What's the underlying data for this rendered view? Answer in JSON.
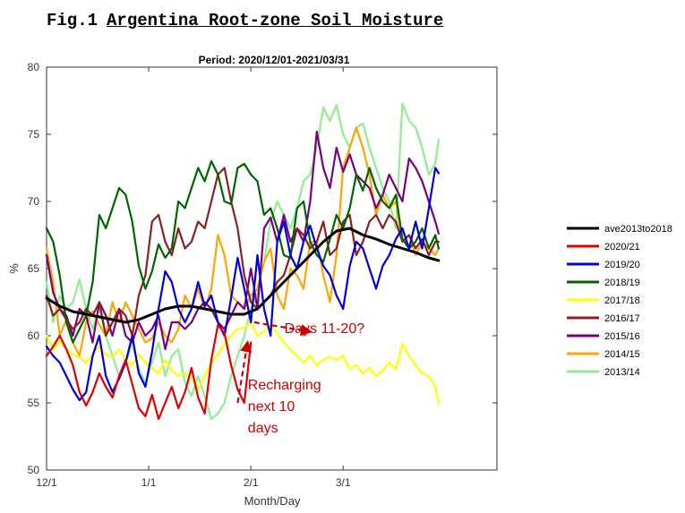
{
  "figure": {
    "number": "Fig.1",
    "title": "Argentina Root-zone Soil Moisture"
  },
  "chart_data": {
    "type": "line",
    "title": "Period: 2020/12/01-2021/03/31",
    "xlabel": "Month/Day",
    "ylabel": "%",
    "xlim": [
      0,
      132
    ],
    "ylim": [
      50,
      80
    ],
    "x_ticks": [
      {
        "day": 0,
        "label": "12/1"
      },
      {
        "day": 31,
        "label": "1/1"
      },
      {
        "day": 62,
        "label": "2/1"
      },
      {
        "day": 90,
        "label": "3/1"
      }
    ],
    "y_ticks": [
      50,
      55,
      60,
      65,
      70,
      75,
      80
    ],
    "grid": false,
    "legend_position": "right, outside plot",
    "series": [
      {
        "name": "ave2013to2018",
        "color": "#000000",
        "width": 3,
        "x": [
          0,
          4,
          8,
          12,
          16,
          20,
          24,
          28,
          32,
          36,
          40,
          44,
          48,
          52,
          56,
          60,
          64,
          68,
          72,
          76,
          80,
          84,
          88,
          92,
          96,
          100,
          104,
          108,
          112,
          116,
          119
        ],
        "y": [
          62.8,
          62.2,
          61.8,
          61.6,
          61.4,
          61.2,
          61.0,
          61.2,
          61.6,
          62.0,
          62.2,
          62.2,
          62.0,
          61.8,
          61.6,
          61.6,
          62.0,
          63.0,
          64.0,
          65.0,
          66.0,
          67.0,
          67.8,
          68.0,
          67.5,
          67.2,
          66.8,
          66.5,
          66.2,
          65.8,
          65.6
        ]
      },
      {
        "name": "2020/21",
        "color": "#e00000",
        "width": 2.2,
        "x": [
          0,
          2,
          4,
          6,
          8,
          10,
          12,
          14,
          16,
          18,
          20,
          22,
          24,
          26,
          28,
          30,
          32,
          34,
          36,
          38,
          40,
          42,
          44,
          46,
          48,
          50,
          52,
          54,
          56,
          58,
          60,
          62
        ],
        "y": [
          58.5,
          59.2,
          60.0,
          59.0,
          57.8,
          55.8,
          54.8,
          55.8,
          57.2,
          56.2,
          55.4,
          57.0,
          58.2,
          56.4,
          54.6,
          54.0,
          55.6,
          53.8,
          55.0,
          56.2,
          54.6,
          55.8,
          57.6,
          55.4,
          54.2,
          58.2,
          60.8,
          60.2,
          57.8,
          56.0,
          55.0,
          59.5
        ]
      },
      {
        "name": "2019/20",
        "color": "#0000dd",
        "width": 2.2,
        "x": [
          0,
          2,
          4,
          6,
          8,
          10,
          12,
          14,
          16,
          18,
          20,
          22,
          24,
          26,
          28,
          30,
          32,
          34,
          36,
          38,
          40,
          42,
          44,
          46,
          48,
          50,
          52,
          54,
          56,
          58,
          60,
          62,
          64,
          66,
          68,
          70,
          72,
          74,
          76,
          78,
          80,
          82,
          84,
          86,
          88,
          90,
          92,
          94,
          96,
          98,
          100,
          102,
          104,
          106,
          108,
          110,
          112,
          114,
          116,
          118,
          119
        ],
        "y": [
          59.2,
          58.5,
          58.0,
          57.0,
          56.0,
          55.2,
          55.8,
          58.5,
          60.0,
          57.0,
          55.8,
          56.8,
          58.0,
          60.0,
          57.2,
          56.2,
          58.8,
          62.0,
          64.8,
          64.0,
          62.0,
          61.0,
          62.0,
          64.0,
          62.2,
          63.0,
          61.0,
          60.0,
          62.8,
          65.8,
          63.5,
          61.0,
          66.0,
          62.0,
          60.0,
          67.0,
          68.5,
          66.0,
          65.0,
          67.0,
          68.2,
          66.5,
          65.2,
          64.5,
          63.0,
          62.0,
          65.2,
          67.0,
          66.5,
          65.0,
          63.5,
          65.2,
          66.0,
          67.2,
          68.0,
          66.5,
          68.5,
          66.5,
          69.5,
          72.5,
          72.1
        ]
      },
      {
        "name": "2018/19",
        "color": "#006400",
        "width": 2.2,
        "x": [
          0,
          2,
          4,
          6,
          8,
          10,
          12,
          14,
          16,
          18,
          20,
          22,
          24,
          26,
          28,
          30,
          32,
          34,
          36,
          38,
          40,
          42,
          44,
          46,
          48,
          50,
          52,
          54,
          56,
          58,
          60,
          62,
          64,
          66,
          68,
          70,
          72,
          74,
          76,
          78,
          80,
          82,
          84,
          86,
          88,
          90,
          92,
          94,
          96,
          98,
          100,
          102,
          104,
          106,
          108,
          110,
          112,
          114,
          116,
          118,
          119
        ],
        "y": [
          68.0,
          67.0,
          64.5,
          61.0,
          59.5,
          60.5,
          61.5,
          64.0,
          69.0,
          68.0,
          69.5,
          71.0,
          70.5,
          68.5,
          65.2,
          63.5,
          64.8,
          66.8,
          65.8,
          66.5,
          70.0,
          69.5,
          71.0,
          72.5,
          71.5,
          73.0,
          72.0,
          70.0,
          69.8,
          72.5,
          72.8,
          72.0,
          71.5,
          69.0,
          69.5,
          68.0,
          66.0,
          65.8,
          69.5,
          70.0,
          67.0,
          66.0,
          65.5,
          67.2,
          69.0,
          68.0,
          69.5,
          72.0,
          70.8,
          72.5,
          71.0,
          70.0,
          69.5,
          70.5,
          67.2,
          66.5,
          67.0,
          68.0,
          66.5,
          67.5,
          66.5
        ]
      },
      {
        "name": "2017/18",
        "color": "#ffff00",
        "width": 2.2,
        "x": [
          0,
          2,
          4,
          6,
          8,
          10,
          12,
          14,
          16,
          18,
          20,
          22,
          24,
          26,
          28,
          30,
          32,
          34,
          36,
          38,
          40,
          42,
          44,
          46,
          48,
          50,
          52,
          54,
          56,
          58,
          60,
          62,
          64,
          66,
          68,
          70,
          72,
          74,
          76,
          78,
          80,
          82,
          84,
          86,
          88,
          90,
          92,
          94,
          96,
          98,
          100,
          102,
          104,
          106,
          108,
          110,
          112,
          114,
          116,
          118,
          119
        ],
        "y": [
          60.0,
          59.0,
          59.6,
          59.0,
          58.6,
          58.4,
          58.0,
          58.6,
          59.2,
          58.6,
          58.4,
          59.0,
          58.2,
          57.8,
          58.6,
          58.0,
          57.6,
          57.2,
          58.2,
          57.4,
          57.0,
          57.2,
          56.8,
          56.0,
          57.0,
          58.0,
          58.6,
          59.4,
          60.0,
          60.5,
          60.6,
          61.0,
          60.0,
          60.3,
          60.8,
          60.2,
          59.5,
          59.0,
          58.5,
          58.0,
          58.5,
          57.8,
          58.2,
          58.4,
          58.2,
          58.5,
          57.5,
          57.8,
          57.2,
          57.6,
          57.0,
          57.4,
          58.0,
          57.5,
          59.4,
          58.5,
          57.8,
          57.2,
          57.0,
          56.2,
          55.0
        ]
      },
      {
        "name": "2016/17",
        "color": "#8b2020",
        "width": 2.2,
        "x": [
          0,
          2,
          4,
          6,
          8,
          10,
          12,
          14,
          16,
          18,
          20,
          22,
          24,
          26,
          28,
          30,
          32,
          34,
          36,
          38,
          40,
          42,
          44,
          46,
          48,
          50,
          52,
          54,
          56,
          58,
          60,
          62,
          64,
          66,
          68,
          70,
          72,
          74,
          76,
          78,
          80,
          82,
          84,
          86,
          88,
          90,
          92,
          94,
          96,
          98,
          100,
          102,
          104,
          106,
          108,
          110,
          112,
          114,
          116,
          118,
          119
        ],
        "y": [
          63.0,
          61.5,
          62.0,
          61.2,
          60.5,
          61.0,
          62.0,
          61.5,
          62.5,
          60.0,
          61.0,
          62.0,
          61.5,
          60.0,
          63.0,
          64.5,
          68.5,
          69.0,
          67.0,
          66.0,
          68.0,
          66.5,
          67.0,
          68.5,
          68.0,
          70.0,
          72.0,
          72.5,
          70.0,
          68.0,
          64.5,
          62.5,
          62.0,
          62.5,
          63.0,
          64.0,
          64.5,
          66.0,
          68.0,
          67.5,
          66.5,
          67.0,
          68.5,
          66.0,
          66.5,
          68.5,
          69.0,
          66.0,
          67.0,
          68.5,
          69.0,
          68.0,
          69.0,
          68.5,
          67.0,
          67.5,
          66.5,
          67.2,
          66.0,
          67.0,
          67.0
        ]
      },
      {
        "name": "2015/16",
        "color": "#7b007b",
        "width": 2.2,
        "x": [
          0,
          2,
          4,
          6,
          8,
          10,
          12,
          14,
          16,
          18,
          20,
          22,
          24,
          26,
          28,
          30,
          32,
          34,
          36,
          38,
          40,
          42,
          44,
          46,
          48,
          50,
          52,
          54,
          56,
          58,
          60,
          62,
          64,
          66,
          68,
          70,
          72,
          74,
          76,
          78,
          80,
          82,
          84,
          86,
          88,
          90,
          92,
          94,
          96,
          98,
          100,
          102,
          104,
          106,
          108,
          110,
          112,
          114,
          116,
          118,
          119
        ],
        "y": [
          66.0,
          63.2,
          62.0,
          61.5,
          60.0,
          62.0,
          61.5,
          59.5,
          62.5,
          61.5,
          60.0,
          62.0,
          60.0,
          59.5,
          61.0,
          60.0,
          60.5,
          61.5,
          59.0,
          61.0,
          61.0,
          60.5,
          61.0,
          62.0,
          62.5,
          62.0,
          61.0,
          60.5,
          61.5,
          62.5,
          62.0,
          65.0,
          62.0,
          68.0,
          68.8,
          67.0,
          69.0,
          67.0,
          68.0,
          67.0,
          70.0,
          75.2,
          72.5,
          71.0,
          74.0,
          72.2,
          73.5,
          72.0,
          71.5,
          71.0,
          69.5,
          70.5,
          72.0,
          71.0,
          70.0,
          73.2,
          72.5,
          71.5,
          70.0,
          68.5,
          67.6
        ]
      },
      {
        "name": "2014/15",
        "color": "#ffa500",
        "width": 2.2,
        "x": [
          0,
          2,
          4,
          6,
          8,
          10,
          12,
          14,
          16,
          18,
          20,
          22,
          24,
          26,
          28,
          30,
          32,
          34,
          36,
          38,
          40,
          42,
          44,
          46,
          48,
          50,
          52,
          54,
          56,
          58,
          60,
          62,
          64,
          66,
          68,
          70,
          72,
          74,
          76,
          78,
          80,
          82,
          84,
          86,
          88,
          90,
          92,
          94,
          96,
          98,
          100,
          102,
          104,
          106,
          108,
          110,
          112,
          114,
          116,
          118,
          119
        ],
        "y": [
          66.5,
          64.0,
          60.0,
          61.2,
          59.5,
          58.5,
          61.0,
          61.8,
          60.8,
          60.0,
          62.5,
          61.0,
          62.5,
          61.5,
          60.5,
          59.5,
          59.8,
          61.0,
          60.0,
          59.5,
          60.5,
          63.0,
          62.0,
          63.5,
          62.0,
          63.5,
          67.5,
          66.0,
          63.0,
          62.5,
          62.0,
          63.0,
          63.5,
          65.5,
          66.5,
          63.0,
          62.0,
          65.0,
          64.5,
          63.5,
          67.0,
          67.0,
          64.5,
          62.5,
          66.0,
          72.5,
          74.0,
          75.5,
          74.0,
          72.0,
          69.0,
          70.5,
          69.5,
          70.0,
          67.0,
          67.5,
          66.0,
          67.0,
          66.5,
          66.0,
          66.5
        ]
      },
      {
        "name": "2013/14",
        "color": "#90ee90",
        "width": 2.2,
        "x": [
          0,
          2,
          4,
          6,
          8,
          10,
          12,
          14,
          16,
          18,
          20,
          22,
          24,
          26,
          28,
          30,
          32,
          34,
          36,
          38,
          40,
          42,
          44,
          46,
          48,
          50,
          52,
          54,
          56,
          58,
          60,
          62,
          64,
          66,
          68,
          70,
          72,
          74,
          76,
          78,
          80,
          82,
          84,
          86,
          88,
          90,
          92,
          94,
          96,
          98,
          100,
          102,
          104,
          106,
          108,
          110,
          112,
          114,
          116,
          118,
          119
        ],
        "y": [
          64.0,
          61.0,
          63.0,
          62.0,
          62.5,
          64.2,
          62.0,
          60.5,
          62.0,
          60.0,
          58.5,
          57.0,
          58.0,
          59.5,
          57.5,
          56.5,
          58.0,
          59.5,
          57.0,
          58.5,
          59.0,
          56.5,
          55.5,
          57.0,
          55.5,
          53.8,
          54.2,
          55.0,
          57.0,
          58.5,
          60.0,
          62.0,
          63.2,
          65.5,
          68.5,
          70.0,
          69.0,
          68.0,
          69.5,
          71.5,
          72.0,
          74.0,
          77.0,
          76.0,
          77.2,
          75.0,
          74.0,
          75.5,
          75.8,
          74.0,
          72.5,
          71.0,
          70.0,
          68.0,
          77.3,
          76.0,
          75.5,
          74.0,
          72.0,
          72.8,
          74.6
        ]
      }
    ],
    "annotations": [
      {
        "text": "Days 11-20?",
        "color": "#cc0000",
        "x": 70,
        "y": 60.2,
        "arrow": {
          "from": [
            63,
            61.0
          ],
          "to": [
            80,
            60.3
          ]
        }
      },
      {
        "text": "Recharging next 10 days",
        "lines": [
          "Recharging",
          "next 10",
          "days"
        ],
        "color": "#cc0000",
        "x": 60,
        "y": 56.0,
        "arrow": {
          "from": [
            58,
            55.0
          ],
          "to": [
            61,
            59.5
          ]
        }
      }
    ]
  }
}
